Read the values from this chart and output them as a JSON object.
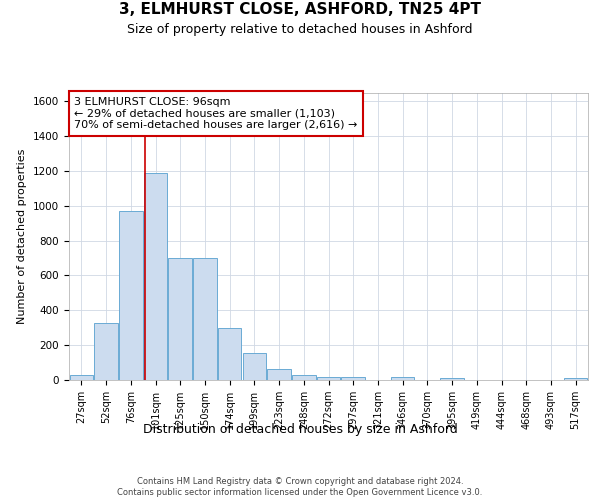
{
  "title": "3, ELMHURST CLOSE, ASHFORD, TN25 4PT",
  "subtitle": "Size of property relative to detached houses in Ashford",
  "xlabel": "Distribution of detached houses by size in Ashford",
  "ylabel": "Number of detached properties",
  "bar_labels": [
    "27sqm",
    "52sqm",
    "76sqm",
    "101sqm",
    "125sqm",
    "150sqm",
    "174sqm",
    "199sqm",
    "223sqm",
    "248sqm",
    "272sqm",
    "297sqm",
    "321sqm",
    "346sqm",
    "370sqm",
    "395sqm",
    "419sqm",
    "444sqm",
    "468sqm",
    "493sqm",
    "517sqm"
  ],
  "bar_values": [
    30,
    325,
    970,
    1190,
    700,
    700,
    300,
    155,
    65,
    30,
    20,
    20,
    0,
    15,
    0,
    12,
    0,
    0,
    0,
    0,
    12
  ],
  "bar_color": "#ccdcef",
  "bar_edge_color": "#6aaad4",
  "vline_index": 2.575,
  "vline_color": "#cc0000",
  "annotation_line1": "3 ELMHURST CLOSE: 96sqm",
  "annotation_line2": "← 29% of detached houses are smaller (1,103)",
  "annotation_line3": "70% of semi-detached houses are larger (2,616) →",
  "annotation_box_facecolor": "#ffffff",
  "annotation_box_edgecolor": "#cc0000",
  "ylim_max": 1650,
  "yticks": [
    0,
    200,
    400,
    600,
    800,
    1000,
    1200,
    1400,
    1600
  ],
  "bg_color": "#ffffff",
  "plot_bg_color": "#ffffff",
  "grid_color": "#d0d8e4",
  "footer_line1": "Contains HM Land Registry data © Crown copyright and database right 2024.",
  "footer_line2": "Contains public sector information licensed under the Open Government Licence v3.0.",
  "title_fontsize": 11,
  "subtitle_fontsize": 9,
  "ylabel_fontsize": 8,
  "xlabel_fontsize": 9,
  "tick_fontsize": 7,
  "annotation_fontsize": 8,
  "footer_fontsize": 6
}
